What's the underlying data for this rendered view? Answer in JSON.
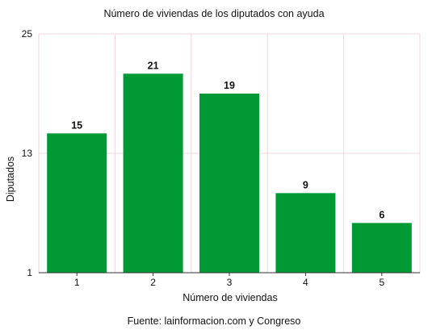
{
  "chart_data": {
    "type": "bar",
    "title": "Número de viviendas de los diputados con ayuda",
    "xlabel": "Número de viviendas",
    "ylabel": "Diputados",
    "categories": [
      "1",
      "2",
      "3",
      "4",
      "5"
    ],
    "values": [
      15,
      21,
      19,
      9,
      6
    ],
    "ylim": [
      1,
      25
    ],
    "yticks": [
      "1",
      "13",
      "25"
    ],
    "grid": true,
    "bar_color": "#009933",
    "grid_color": "#f3d6df",
    "source": "Fuente: lainformacion.com y Congreso"
  }
}
